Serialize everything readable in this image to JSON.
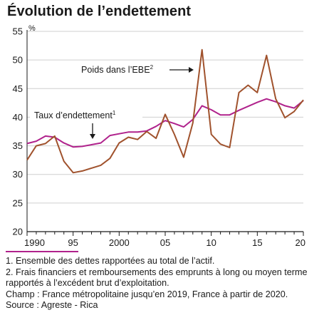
{
  "title": "Évolution de l’endettement",
  "chart_data": {
    "type": "line",
    "title": "Évolution de l’endettement",
    "xlabel": "",
    "ylabel": "%",
    "xlim": [
      1990,
      2020
    ],
    "ylim": [
      20,
      55
    ],
    "y_ticks": [
      20,
      25,
      30,
      35,
      40,
      45,
      50,
      55
    ],
    "x_ticks": [
      1990,
      1995,
      2000,
      2005,
      2010,
      2015,
      2020
    ],
    "x_tick_labels": [
      "1990",
      "95",
      "2000",
      "05",
      "10",
      "15",
      "20"
    ],
    "grid": "horizontal",
    "x": [
      1990,
      1991,
      1992,
      1993,
      1994,
      1995,
      1996,
      1997,
      1998,
      1999,
      2000,
      2001,
      2002,
      2003,
      2004,
      2005,
      2006,
      2007,
      2008,
      2009,
      2010,
      2011,
      2012,
      2013,
      2014,
      2015,
      2016,
      2017,
      2018,
      2019,
      2020
    ],
    "series": [
      {
        "name": "Taux d’endettement",
        "label": "Taux d’endettement",
        "superscript": "1",
        "color": "#b0228c",
        "values": [
          35.4,
          35.8,
          36.7,
          36.5,
          35.5,
          34.8,
          34.9,
          35.2,
          35.5,
          36.8,
          37.1,
          37.4,
          37.4,
          37.6,
          38.4,
          39.4,
          38.9,
          38.3,
          39.6,
          42.0,
          41.3,
          40.4,
          40.4,
          41.2,
          41.9,
          42.6,
          43.2,
          42.7,
          42.0,
          41.6,
          42.9
        ]
      },
      {
        "name": "Poids dans l’EBE",
        "label": "Poids dans l’EBE",
        "superscript": "2",
        "color": "#a0522d",
        "values": [
          32.5,
          35.0,
          35.4,
          36.7,
          32.3,
          30.3,
          30.6,
          31.1,
          31.6,
          32.8,
          35.5,
          36.5,
          36.1,
          37.5,
          36.3,
          40.5,
          37.0,
          33.0,
          39.0,
          51.8,
          37.0,
          35.3,
          34.7,
          44.3,
          45.6,
          44.3,
          50.8,
          43.2,
          39.9,
          41.0,
          43.0
        ]
      }
    ]
  },
  "notes": [
    "1. Ensemble des dettes rapportées au total de l’actif.",
    "2. Frais financiers et remboursements des emprunts à long ou moyen terme rapportés à l’excédent brut d’exploitation.",
    "Champ : France métropolitaine jusqu’en 2019, France à partir de 2020.",
    "Source : Agreste - Rica"
  ]
}
